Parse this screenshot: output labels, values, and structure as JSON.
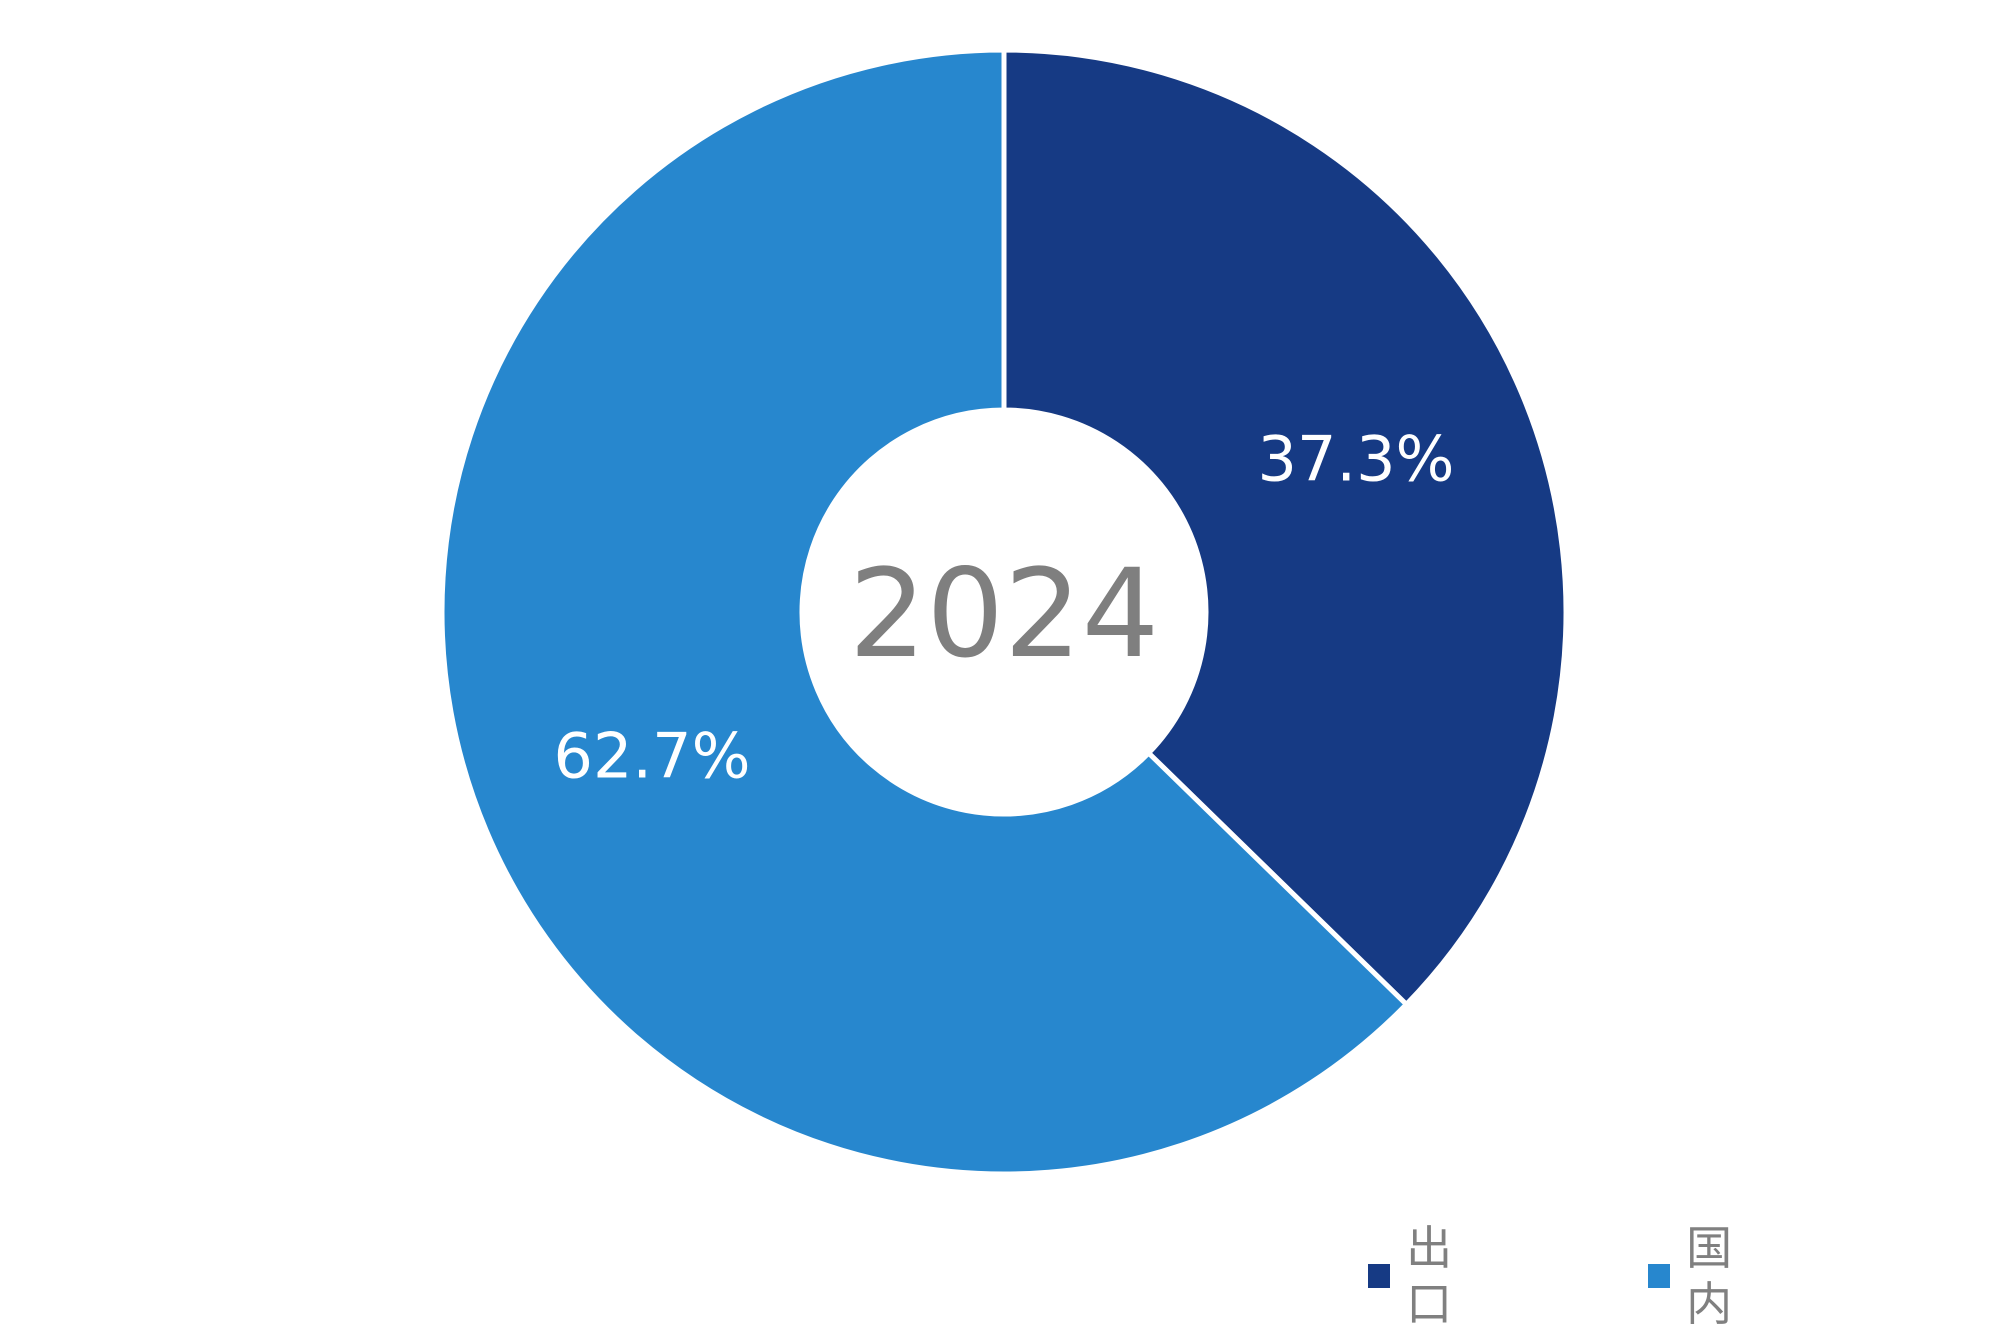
{
  "chart_data": {
    "type": "pie",
    "variant": "donut",
    "center_label": "2024",
    "slices": [
      {
        "name": "出口",
        "value": 37.3,
        "label": "37.3%",
        "color": "#163A84"
      },
      {
        "name": "国内",
        "value": 62.7,
        "label": "62.7%",
        "color": "#2787CE"
      }
    ],
    "legend": {
      "placement": "bottom-right",
      "items": [
        {
          "label": "出口",
          "color": "#163A84"
        },
        {
          "label": "国内",
          "color": "#2787CE"
        }
      ]
    }
  }
}
